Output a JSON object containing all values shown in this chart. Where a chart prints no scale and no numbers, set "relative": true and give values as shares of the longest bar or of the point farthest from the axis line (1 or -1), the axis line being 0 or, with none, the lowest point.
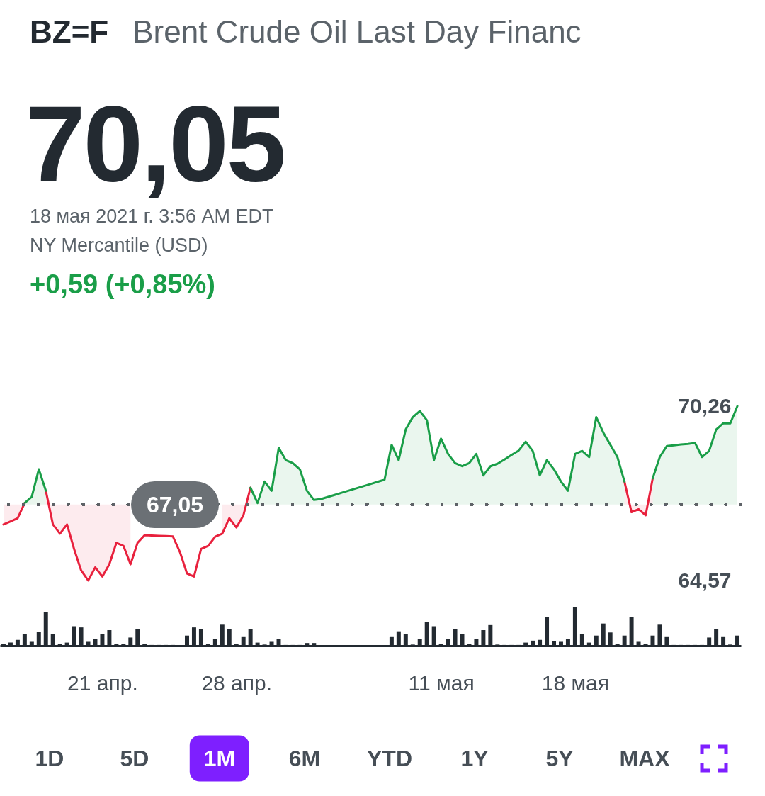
{
  "chart_data": [
    {
      "type": "line",
      "title": "BZ=F",
      "subtitle": "Brent Crude Oil Last Day Financ",
      "annotations": [
        "70,05",
        "18 мая 2021 г. 3:56 AM EDT",
        "NY Mercantile (USD)",
        "+0,59 (+0,85%)",
        "1D",
        "5D",
        "1M",
        "6M",
        "YTD",
        "1Y",
        "5Y",
        "MAX"
      ],
      "categories": [
        null,
        null,
        null,
        null,
        null,
        null,
        null,
        null,
        null,
        null,
        null,
        null,
        null,
        null,
        "21 апр.",
        null,
        null,
        null,
        null,
        null,
        null,
        null,
        null,
        null,
        null,
        null,
        null,
        null,
        null,
        null,
        null,
        null,
        null,
        "28 апр.",
        null,
        null,
        null,
        null,
        null,
        null,
        null,
        null,
        null,
        null,
        null,
        null,
        null,
        null,
        null,
        null,
        null,
        null,
        null,
        null,
        null,
        null,
        null,
        null,
        null,
        null,
        null,
        null,
        "11 мая",
        null,
        null,
        null,
        null,
        null,
        null,
        null,
        null,
        null,
        null,
        null,
        null,
        null,
        null,
        null,
        null,
        null,
        null,
        "18 мая",
        null,
        null,
        null,
        null,
        null,
        null,
        null,
        null,
        null,
        null,
        null,
        null,
        null,
        null,
        null,
        null,
        null,
        null,
        null,
        null,
        null,
        null,
        null
      ],
      "series": [
        {
          "color": "#e8213d",
          "values": [
            66.4,
            66.5,
            66.6,
            67.1,
            null,
            null,
            67.5,
            66.4,
            66.1,
            66.4,
            65.6,
            64.9,
            64.57,
            65.0,
            64.7,
            65.1,
            65.8,
            65.7,
            65.1,
            65.8,
            66.05,
            66.04,
            66.03,
            66.02,
            66.01,
            65.5,
            64.8,
            64.7,
            65.6,
            65.7,
            66.0,
            66.1,
            66.6,
            66.3,
            66.7,
            67.6,
            null,
            null,
            null,
            null,
            null,
            null,
            null,
            null,
            null,
            null,
            null,
            null,
            null,
            null,
            null,
            null,
            null,
            null,
            null,
            null,
            null,
            null,
            null,
            null,
            null,
            null,
            null,
            null,
            null,
            null,
            null,
            null,
            null,
            null,
            null,
            null,
            null,
            null,
            null,
            null,
            null,
            null,
            null,
            null,
            null,
            null,
            null,
            null,
            null,
            null,
            null,
            null,
            67.8,
            66.8,
            66.9,
            66.7,
            67.9,
            null,
            null,
            null,
            null,
            null,
            null,
            null,
            null,
            null,
            null,
            null,
            null
          ],
          "lower": [
            66.4,
            66.5,
            66.6,
            67.1,
            null,
            null,
            67.5,
            66.4,
            66.1,
            66.4,
            65.6,
            64.9,
            64.57,
            65.0,
            64.7,
            65.1,
            65.8,
            65.7,
            65.1,
            null,
            null,
            null,
            null,
            null,
            null,
            null,
            null,
            null,
            null,
            null,
            null,
            66.1,
            66.6,
            66.3,
            66.7,
            67.6,
            null,
            null,
            null,
            null,
            null,
            null,
            null,
            null,
            null,
            null,
            null,
            null,
            null,
            null,
            null,
            null,
            null,
            null,
            null,
            null,
            null,
            null,
            null,
            null,
            null,
            null,
            null,
            null,
            null,
            null,
            null,
            null,
            null,
            null,
            null,
            null,
            null,
            null,
            null,
            null,
            null,
            null,
            null,
            null,
            null,
            null,
            null,
            null,
            null,
            null,
            null,
            null,
            67.8,
            66.8,
            66.9,
            66.7,
            67.9,
            null,
            null,
            null,
            null,
            null,
            null,
            null,
            null,
            null,
            null,
            null,
            null
          ],
          "upper": [
            67.05,
            67.05,
            67.05,
            67.05,
            null,
            null,
            67.05,
            67.05,
            67.05,
            67.05,
            67.05,
            67.05,
            67.05,
            67.05,
            67.05,
            67.05,
            67.05,
            67.05,
            67.05,
            null,
            null,
            null,
            null,
            null,
            null,
            null,
            null,
            null,
            null,
            null,
            null,
            67.05,
            67.05,
            67.05,
            67.05,
            67.05,
            null,
            null,
            null,
            null,
            null,
            null,
            null,
            null,
            null,
            null,
            null,
            null,
            null,
            null,
            null,
            null,
            null,
            null,
            null,
            null,
            null,
            null,
            null,
            null,
            null,
            null,
            null,
            null,
            null,
            null,
            null,
            null,
            null,
            null,
            null,
            null,
            null,
            null,
            null,
            null,
            null,
            null,
            null,
            null,
            null,
            null,
            null,
            null,
            null,
            null,
            null,
            null,
            67.05,
            67.05,
            67.05,
            67.05,
            67.05,
            null,
            null,
            null,
            null,
            null,
            null,
            null,
            null,
            null,
            null,
            null,
            null
          ]
        },
        {
          "color": "#1a9e48",
          "values": [
            null,
            null,
            null,
            67.1,
            67.3,
            68.2,
            67.5,
            null,
            null,
            null,
            null,
            null,
            null,
            null,
            null,
            null,
            null,
            null,
            null,
            null,
            null,
            null,
            null,
            null,
            null,
            null,
            null,
            null,
            null,
            null,
            null,
            null,
            null,
            null,
            null,
            67.6,
            67.1,
            67.8,
            67.5,
            68.9,
            68.5,
            68.4,
            68.2,
            67.5,
            67.2,
            67.23,
            67.3,
            67.37,
            67.44,
            67.51,
            67.58,
            67.65,
            67.72,
            67.79,
            67.86,
            69.0,
            68.5,
            69.5,
            69.9,
            70.1,
            69.8,
            68.5,
            69.2,
            68.7,
            68.4,
            68.3,
            68.4,
            68.7,
            68.0,
            68.3,
            68.38,
            68.52,
            68.67,
            68.81,
            69.1,
            68.8,
            68.0,
            68.5,
            68.2,
            67.8,
            67.5,
            68.7,
            68.8,
            68.6,
            69.9,
            69.4,
            69.0,
            68.6,
            67.8,
            null,
            null,
            null,
            67.9,
            68.6,
            68.96,
            68.98,
            69.01,
            69.03,
            69.06,
            68.6,
            68.8,
            69.5,
            69.7,
            69.7,
            70.26
          ],
          "lower": [
            null,
            null,
            null,
            67.05,
            67.05,
            67.05,
            67.05,
            null,
            null,
            null,
            null,
            null,
            null,
            null,
            null,
            null,
            null,
            null,
            null,
            null,
            null,
            null,
            null,
            null,
            null,
            null,
            null,
            null,
            null,
            null,
            null,
            null,
            null,
            null,
            null,
            67.05,
            67.05,
            67.05,
            67.05,
            67.05,
            67.05,
            67.05,
            67.05,
            67.05,
            67.05,
            67.05,
            67.05,
            67.05,
            67.05,
            67.05,
            67.05,
            67.05,
            67.05,
            67.05,
            67.05,
            67.05,
            67.05,
            67.05,
            67.05,
            67.05,
            67.05,
            67.05,
            67.05,
            67.05,
            67.05,
            67.05,
            67.05,
            67.05,
            67.05,
            67.05,
            67.05,
            67.05,
            67.05,
            67.05,
            67.05,
            67.05,
            67.05,
            67.05,
            67.05,
            67.05,
            67.05,
            67.05,
            67.05,
            67.05,
            67.05,
            67.05,
            67.05,
            67.05,
            67.05,
            null,
            null,
            null,
            67.05,
            67.05,
            67.05,
            67.05,
            67.05,
            67.05,
            67.05,
            67.05,
            67.05,
            67.05,
            67.05,
            67.05,
            67.05
          ],
          "upper": [
            null,
            null,
            null,
            67.1,
            67.3,
            68.2,
            67.5,
            null,
            null,
            null,
            null,
            null,
            null,
            null,
            null,
            null,
            null,
            null,
            null,
            null,
            null,
            null,
            null,
            null,
            null,
            null,
            null,
            null,
            null,
            null,
            null,
            null,
            null,
            null,
            null,
            67.6,
            67.1,
            67.8,
            67.5,
            68.9,
            68.5,
            68.4,
            68.2,
            67.5,
            67.2,
            67.23,
            67.3,
            67.37,
            67.44,
            67.51,
            67.58,
            67.65,
            67.72,
            67.79,
            67.86,
            69.0,
            68.5,
            69.5,
            69.9,
            70.1,
            69.8,
            68.5,
            69.2,
            68.7,
            68.4,
            68.3,
            68.4,
            68.7,
            68.0,
            68.3,
            68.38,
            68.52,
            68.67,
            68.81,
            69.1,
            68.8,
            68.0,
            68.5,
            68.2,
            67.8,
            67.5,
            68.7,
            68.8,
            68.6,
            69.9,
            69.4,
            69.0,
            68.6,
            67.8,
            null,
            null,
            null,
            67.9,
            68.6,
            68.96,
            68.98,
            69.01,
            69.03,
            69.06,
            68.6,
            68.8,
            69.5,
            69.7,
            69.7,
            70.26
          ]
        }
      ],
      "ylim": [
        64.57,
        70.26
      ],
      "yticks": [
        {
          "value": 70.26,
          "label": "70,26"
        },
        {
          "value": 64.57,
          "label": "64,57"
        }
      ],
      "ref_lines": [
        {
          "axis": "y",
          "value": 67.05,
          "label": "67,05",
          "color": "#5f6368",
          "line_style": "dotted"
        }
      ]
    },
    {
      "type": "bar",
      "relative": true,
      "color": "#232a31",
      "categories": [
        null,
        null,
        null,
        null,
        null,
        null,
        null,
        null,
        null,
        null,
        null,
        null,
        null,
        null,
        null,
        null,
        null,
        null,
        null,
        null,
        null,
        null,
        null,
        null,
        null,
        null,
        null,
        null,
        null,
        null,
        null,
        null,
        null,
        null,
        null,
        null,
        null,
        null,
        null,
        null,
        null,
        null,
        null,
        null,
        null,
        null,
        null,
        null,
        null,
        null,
        null,
        null,
        null,
        null,
        null,
        null,
        null,
        null,
        null,
        null,
        null,
        null,
        null,
        null,
        null,
        null,
        null,
        null,
        null,
        null,
        null,
        null,
        null,
        null,
        null,
        null,
        null,
        null,
        null,
        null,
        null,
        null,
        null,
        null,
        null,
        null,
        null,
        null,
        null,
        null,
        null,
        null,
        null,
        null,
        null,
        null,
        null,
        null,
        null,
        null,
        null,
        null,
        null,
        null,
        null
      ],
      "values": [
        0.05,
        0.08,
        0.15,
        0.3,
        0.1,
        0.35,
        0.87,
        0.3,
        0.05,
        0.08,
        0.5,
        0.47,
        0.1,
        0.17,
        0.3,
        0.4,
        0.05,
        0.05,
        0.21,
        0.43,
        0.05,
        0.02,
        0.02,
        0.02,
        0.02,
        0.02,
        0.26,
        0.47,
        0.43,
        0.05,
        0.17,
        0.54,
        0.43,
        0.04,
        0.24,
        0.43,
        0.08,
        0.03,
        0.1,
        0.17,
        0.02,
        0.02,
        0.02,
        0.07,
        0.07,
        0.01,
        0.01,
        0.01,
        0.01,
        0.01,
        0.01,
        0.01,
        0.01,
        0.01,
        0.01,
        0.24,
        0.37,
        0.3,
        0.03,
        0.18,
        0.6,
        0.5,
        0.05,
        0.17,
        0.43,
        0.3,
        0.04,
        0.17,
        0.4,
        0.53,
        0.03,
        0.02,
        0.02,
        0.02,
        0.08,
        0.13,
        0.15,
        0.74,
        0.12,
        0.1,
        0.17,
        1,
        0.3,
        0.08,
        0.26,
        0.57,
        0.34,
        0.05,
        0.26,
        0.74,
        0.1,
        0.05,
        0.26,
        0.54,
        0.24,
        0.02,
        0.02,
        0.02,
        0.02,
        0.02,
        0.21,
        0.43,
        0.24,
        0.03,
        0.26
      ]
    }
  ]
}
